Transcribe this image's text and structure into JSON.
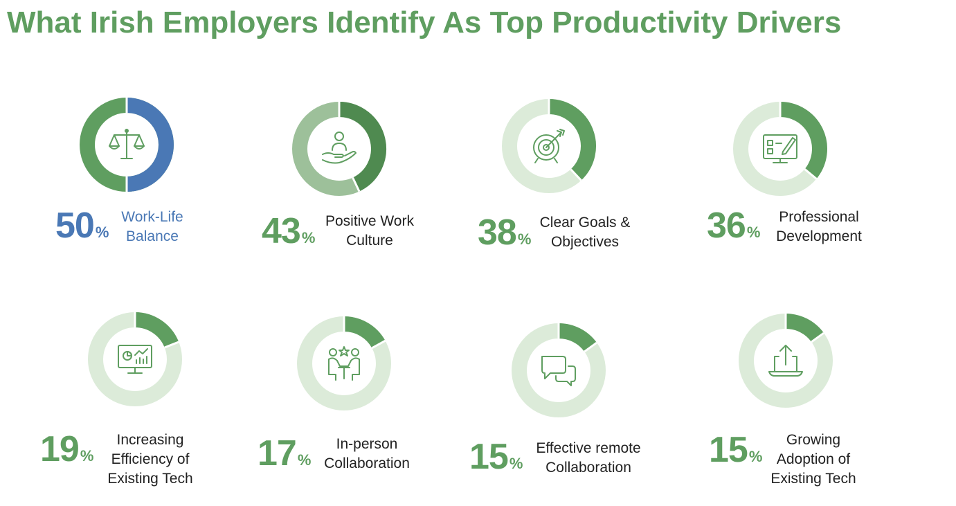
{
  "title": "What Irish Employers Identify As Top Productivity Drivers",
  "colors": {
    "title": "#5f9e60",
    "ring_fill_green": "#5f9e60",
    "ring_fill_dark": "#4f8a50",
    "ring_bg_light": "#dcebd9",
    "ring_bg_mid": "#9dc09a",
    "highlight_blue": "#4a78b5",
    "label_dark": "#222222",
    "icon_stroke": "#5f9e60"
  },
  "chart_data": {
    "type": "pie",
    "title": "What Irish Employers Identify As Top Productivity Drivers",
    "unit": "%",
    "items": [
      {
        "value": 50,
        "label_lines": [
          "Work-Life",
          "Balance"
        ],
        "icon": "scales-icon",
        "highlight": true
      },
      {
        "value": 43,
        "label_lines": [
          "Positive Work",
          "Culture"
        ],
        "icon": "hand-person-icon",
        "highlight": false
      },
      {
        "value": 38,
        "label_lines": [
          "Clear Goals &",
          "Objectives"
        ],
        "icon": "target-icon",
        "highlight": false
      },
      {
        "value": 36,
        "label_lines": [
          "Professional",
          "Development"
        ],
        "icon": "monitor-edit-icon",
        "highlight": false
      },
      {
        "value": 19,
        "label_lines": [
          "Increasing",
          "Efficiency of",
          "Existing Tech"
        ],
        "icon": "monitor-chart-icon",
        "highlight": false
      },
      {
        "value": 17,
        "label_lines": [
          "In-person",
          "Collaboration"
        ],
        "icon": "people-meeting-icon",
        "highlight": false
      },
      {
        "value": 15,
        "label_lines": [
          "Effective remote",
          "Collaboration"
        ],
        "icon": "chat-bubbles-icon",
        "highlight": false
      },
      {
        "value": 15,
        "label_lines": [
          "Growing",
          "Adoption of",
          "Existing Tech"
        ],
        "icon": "upload-tray-icon",
        "highlight": false
      }
    ]
  }
}
